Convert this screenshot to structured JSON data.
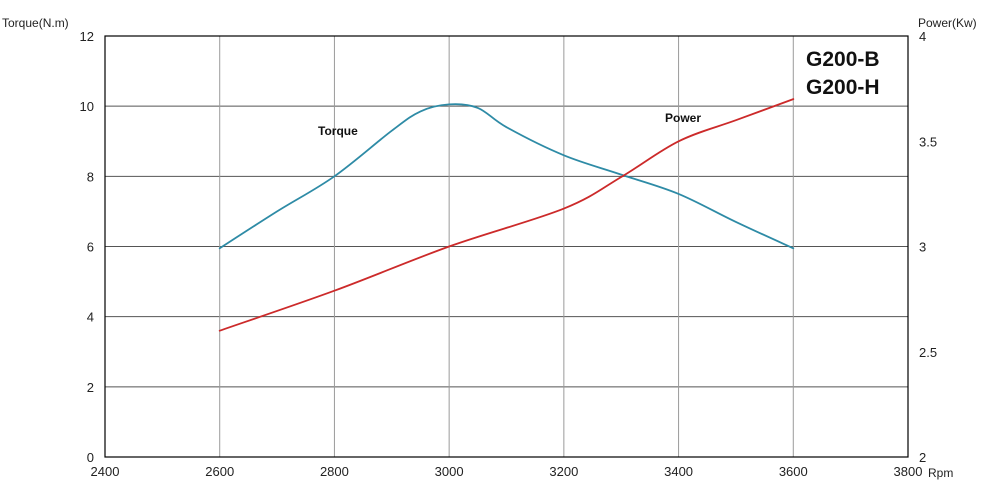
{
  "chart_data": {
    "type": "line",
    "xlabel": "Rpm",
    "ylabel_left": "Torque(N.m)",
    "ylabel_right": "Power(Kw)",
    "xlim": [
      2400,
      3800
    ],
    "ylim_left": [
      0,
      12
    ],
    "ylim_right": [
      2,
      4
    ],
    "x_ticks": [
      2400,
      2600,
      2800,
      3000,
      3200,
      3400,
      3600,
      3800
    ],
    "y_left_ticks": [
      0,
      2,
      4,
      6,
      8,
      10,
      12
    ],
    "y_right_ticks": [
      2,
      2.5,
      3,
      3.5,
      4
    ],
    "y_right_tick_labels": [
      "2",
      "2.5",
      "3",
      "3.5",
      "4"
    ],
    "grid": true,
    "models": [
      "G200-B",
      "G200-H"
    ],
    "series": [
      {
        "name": "Torque",
        "axis": "left",
        "color": "#2e8ba6",
        "x": [
          2600,
          2700,
          2800,
          2900,
          2950,
          3000,
          3050,
          3100,
          3200,
          3300,
          3400,
          3500,
          3600
        ],
        "y": [
          5.95,
          7.0,
          8.0,
          9.3,
          9.85,
          10.05,
          9.95,
          9.4,
          8.6,
          8.05,
          7.5,
          6.7,
          5.95
        ]
      },
      {
        "name": "Power",
        "axis": "right",
        "color": "#cc2a2a",
        "x": [
          2600,
          2800,
          3000,
          3200,
          3300,
          3400,
          3500,
          3600
        ],
        "y": [
          2.6,
          2.79,
          3.0,
          3.18,
          3.33,
          3.5,
          3.6,
          3.7
        ]
      }
    ]
  }
}
